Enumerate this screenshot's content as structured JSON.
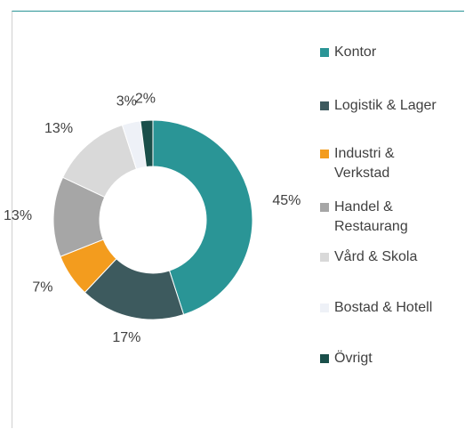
{
  "chart_data": {
    "type": "donut",
    "categories": [
      "Kontor",
      "Logistik & Lager",
      "Industri &\nVerkstad",
      "Handel &\nRestaurang",
      "Vård & Skola",
      "Bostad & Hotell",
      "Övrigt"
    ],
    "values": [
      45,
      17,
      7,
      13,
      13,
      3,
      2
    ],
    "value_labels": [
      "45%",
      "17%",
      "7%",
      "13%",
      "13%",
      "3%",
      "2%"
    ],
    "colors": [
      "#2a9596",
      "#3d5a5e",
      "#f39c1e",
      "#a6a6a6",
      "#d9d9d9",
      "#eef1f7",
      "#1a4f4a"
    ],
    "legend": "right"
  }
}
